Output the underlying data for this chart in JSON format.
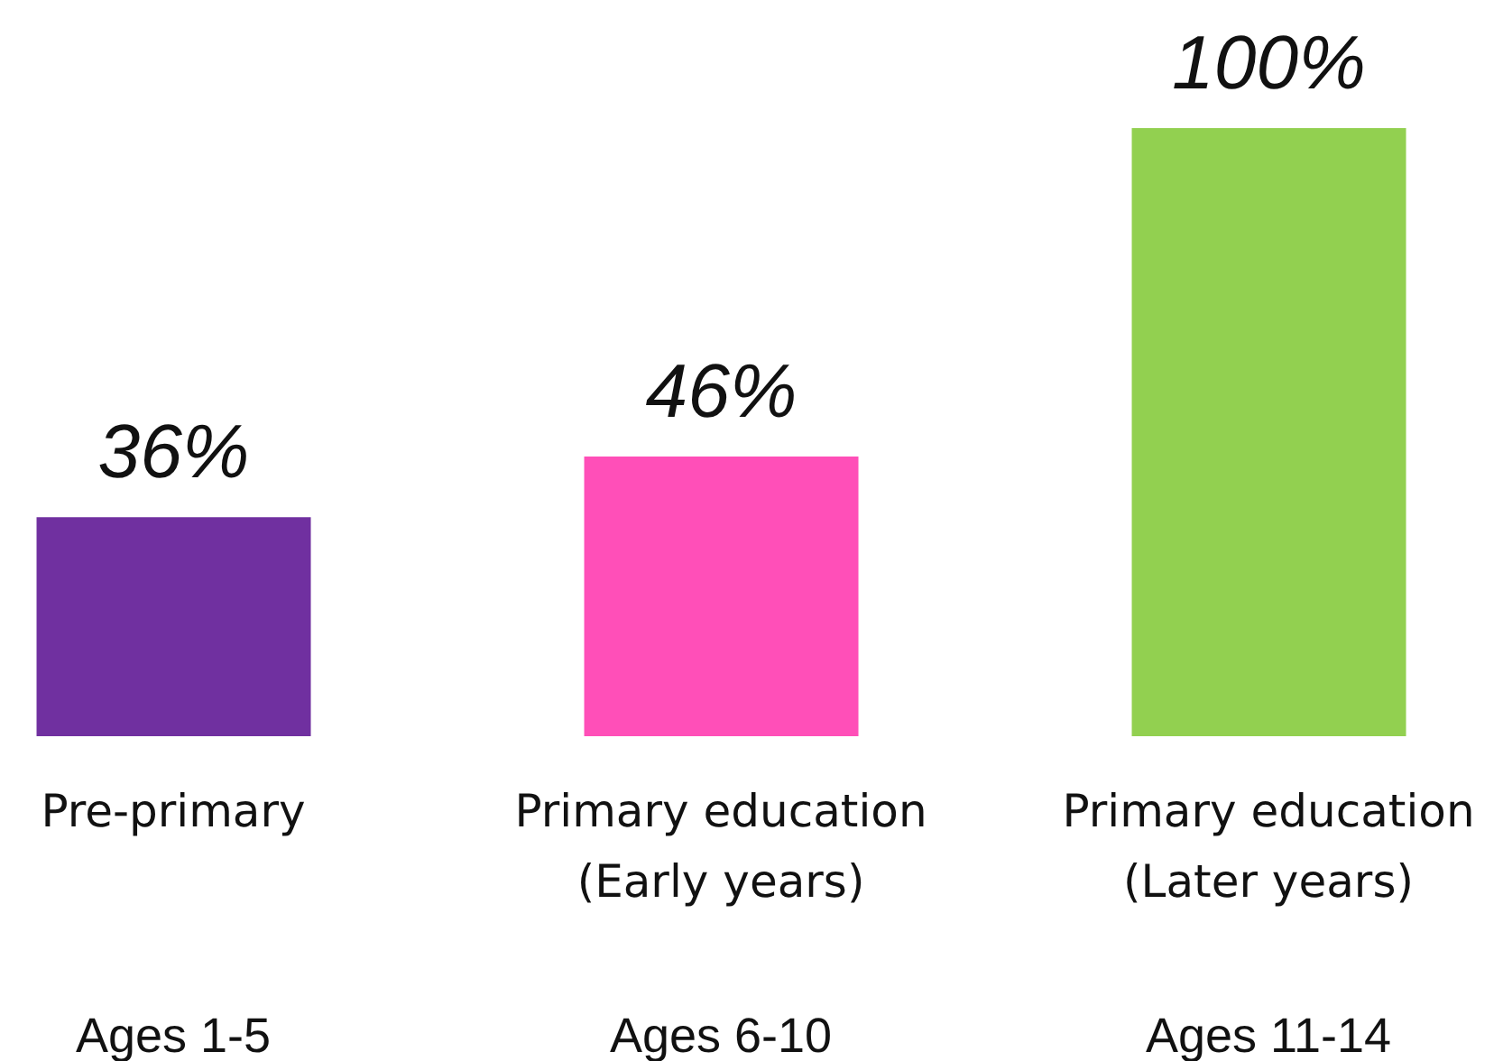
{
  "chart_data": {
    "type": "bar",
    "categories": [
      "Pre-primary",
      "Primary education\n(Early years)",
      "Primary education\n(Later years)"
    ],
    "values": [
      36,
      46,
      100
    ],
    "colors": [
      "#7030a0",
      "#ff4fb8",
      "#92d050"
    ],
    "value_labels": [
      "36%",
      "46%",
      "100%"
    ],
    "ylim": [
      0,
      100
    ],
    "annotations": [
      "Ages 1-5",
      "Ages 6-10",
      "Ages 11-14"
    ]
  }
}
